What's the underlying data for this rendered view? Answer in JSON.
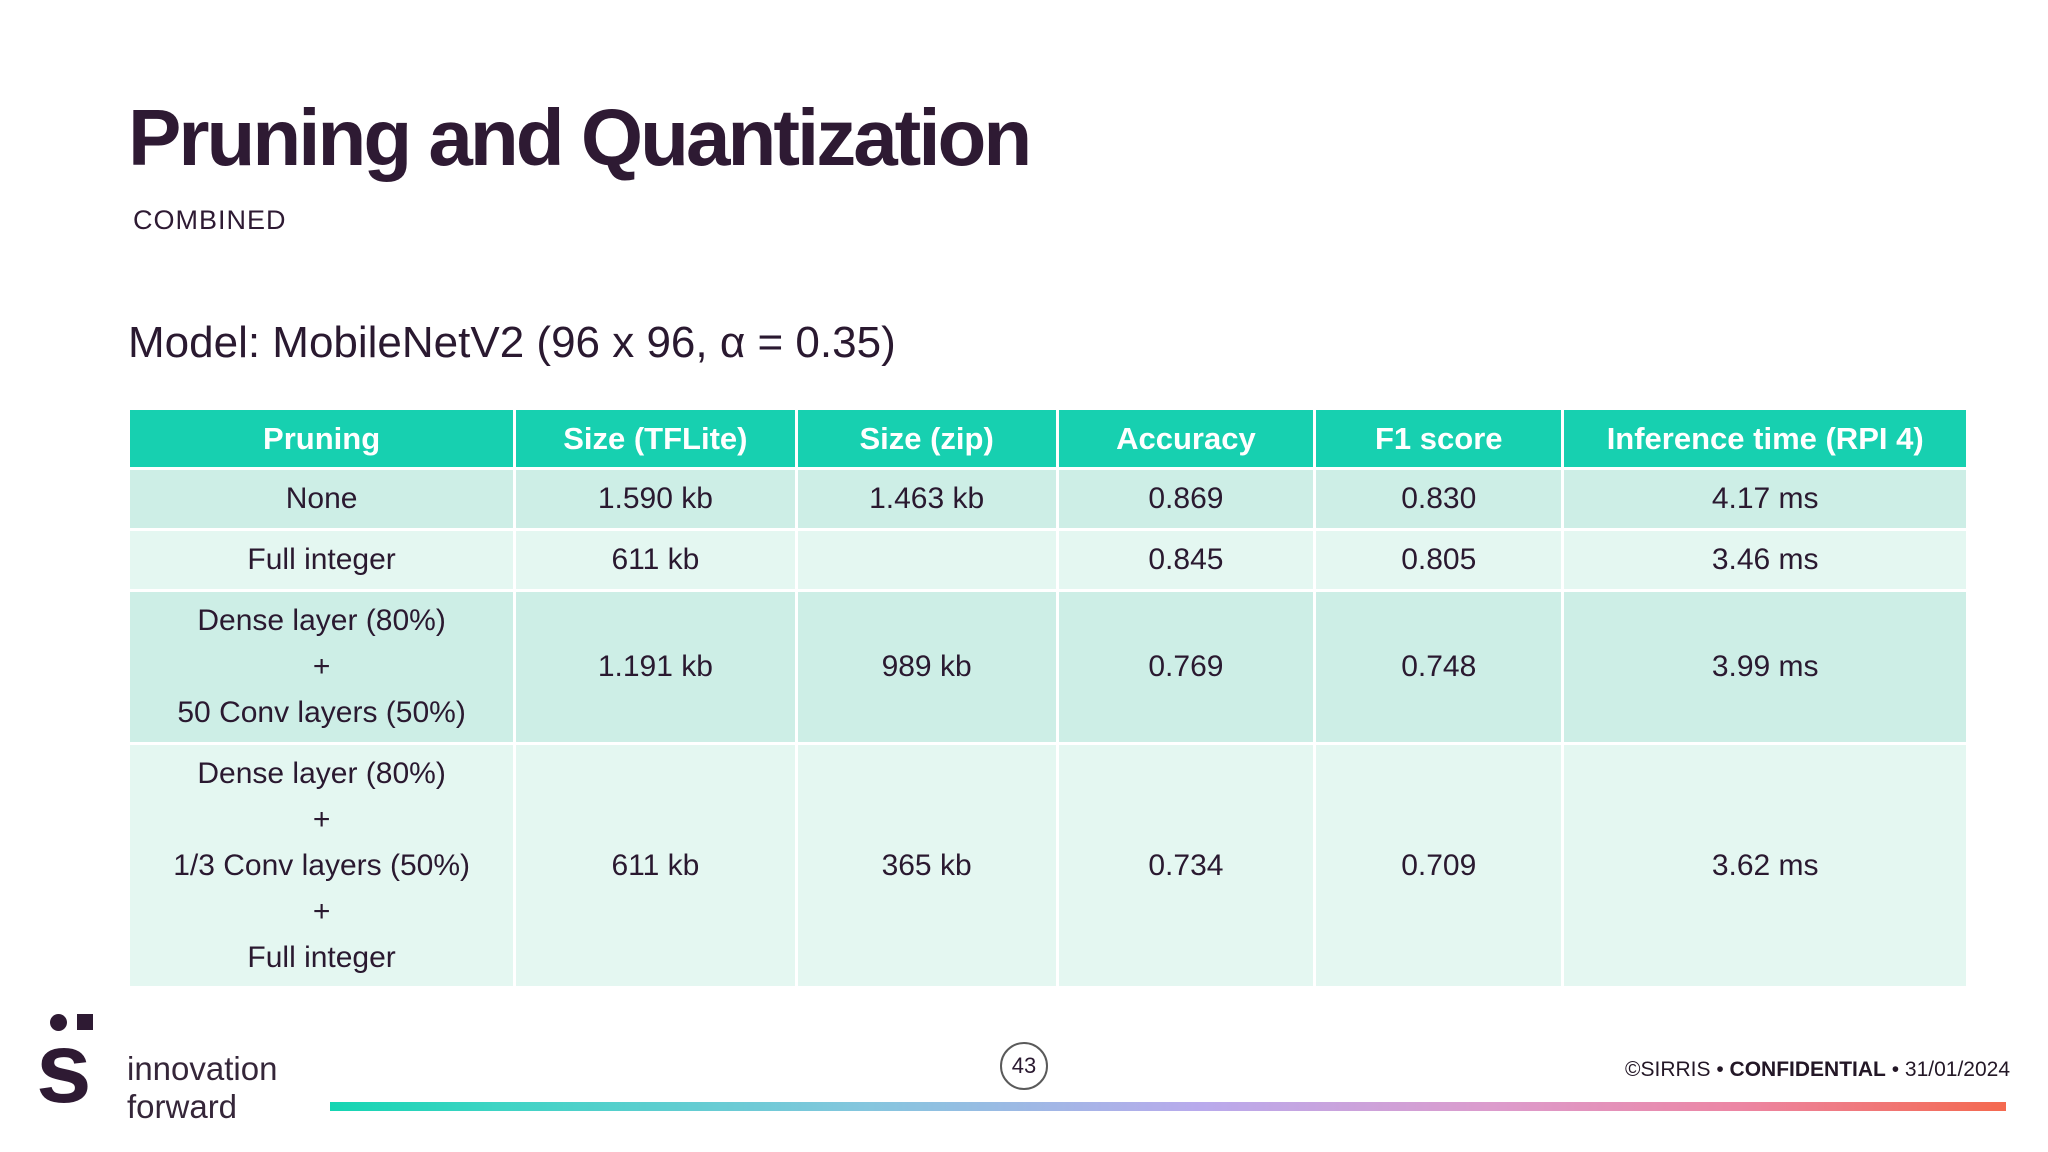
{
  "slide": {
    "title": "Pruning and Quantization",
    "kicker": "COMBINED",
    "model_line": "Model: MobileNetV2 (96 x 96, α = 0.35)"
  },
  "table": {
    "columns": [
      "Pruning",
      "Size (TFLite)",
      "Size (zip)",
      "Accuracy",
      "F1 score",
      "Inference time (RPI 4)"
    ],
    "rows": [
      {
        "cells": [
          [
            "None"
          ],
          "1.590 kb",
          "1.463 kb",
          "0.869",
          "0.830",
          "4.17 ms"
        ]
      },
      {
        "cells": [
          [
            "Full integer"
          ],
          "611 kb",
          "",
          "0.845",
          "0.805",
          "3.46 ms"
        ]
      },
      {
        "cells": [
          [
            "Dense layer (80%)",
            "+",
            "50 Conv layers (50%)"
          ],
          "1.191 kb",
          "989 kb",
          "0.769",
          "0.748",
          "3.99 ms"
        ]
      },
      {
        "cells": [
          [
            "Dense layer (80%)",
            "+",
            "1/3 Conv layers (50%)",
            "+",
            "Full integer"
          ],
          "611 kb",
          "365 kb",
          "0.734",
          "0.709",
          "3.62 ms"
        ]
      }
    ]
  },
  "footer": {
    "logo_letter": "s",
    "logo_line1": "innovation",
    "logo_line2": "forward",
    "page_number": "43",
    "copyright_prefix": "©SIRRIS • ",
    "copyright_bold": "CONFIDENTIAL",
    "copyright_suffix": " • 31/01/2024"
  },
  "colors": {
    "header_teal": "#17d0b0",
    "row_dark": "#cdeee6",
    "row_light": "#e4f7f1",
    "ink": "#2a1930",
    "gradient_start": "#14d5b2",
    "gradient_end": "#f4694f"
  }
}
